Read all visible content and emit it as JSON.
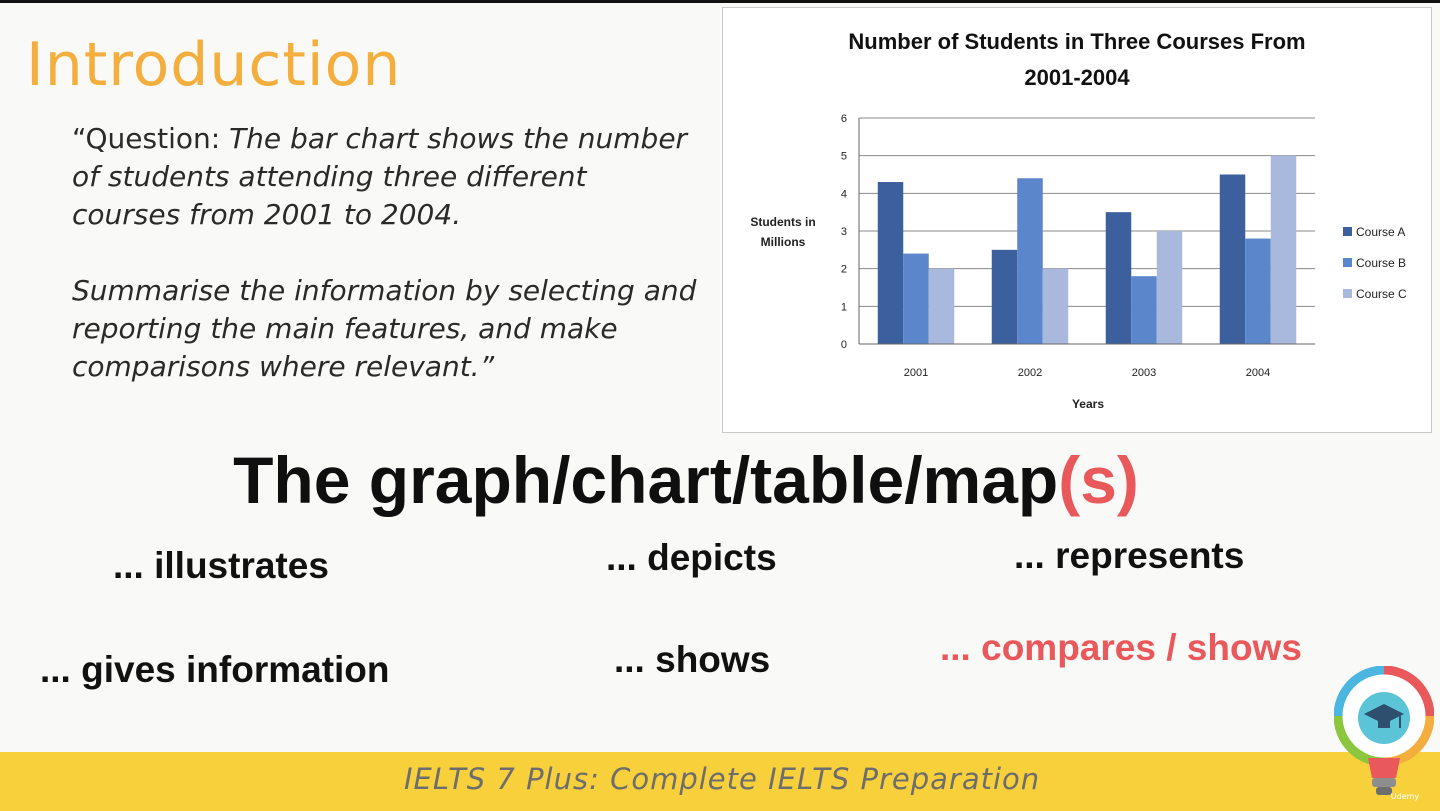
{
  "slide": {
    "title": "Introduction",
    "question_prefix": "“Question: ",
    "question_body": "The bar chart shows the number of students attending three different courses from 2001 to 2004.",
    "instruction": "Summarise the information by selecting and reporting the main features, and make comparisons where relevant.”",
    "headline_main": "The graph/chart/table/map",
    "headline_accent": "(s)",
    "phrases": [
      "... illustrates",
      "... depicts",
      "... represents",
      "... gives information",
      "... shows",
      "... compares / shows"
    ],
    "footer": "IELTS 7 Plus: Complete IELTS Preparation",
    "logo_text": "Udemy"
  },
  "colors": {
    "title": "#f4ae3d",
    "accent_red": "#e9585b",
    "footer_bar": "#f7d03c"
  },
  "chart_data": {
    "type": "bar",
    "title_lines": [
      "Number of Students in Three Courses From",
      "2001-2004"
    ],
    "ylabel_lines": [
      "Students in",
      "Millions"
    ],
    "xlabel": "Years",
    "categories": [
      "2001",
      "2002",
      "2003",
      "2004"
    ],
    "ylim": [
      0,
      6
    ],
    "yticks": [
      "0",
      "1",
      "2",
      "3",
      "4",
      "5",
      "6"
    ],
    "grid": true,
    "legend_position": "right",
    "series": [
      {
        "name": "Course A",
        "values": [
          4.3,
          2.5,
          3.5,
          4.5
        ],
        "color": "#3c5f9e"
      },
      {
        "name": "Course B",
        "values": [
          2.4,
          4.4,
          1.8,
          2.8
        ],
        "color": "#5b86cc"
      },
      {
        "name": "Course C",
        "values": [
          2.0,
          2.0,
          3.0,
          5.0
        ],
        "color": "#a9b9dd"
      }
    ]
  }
}
